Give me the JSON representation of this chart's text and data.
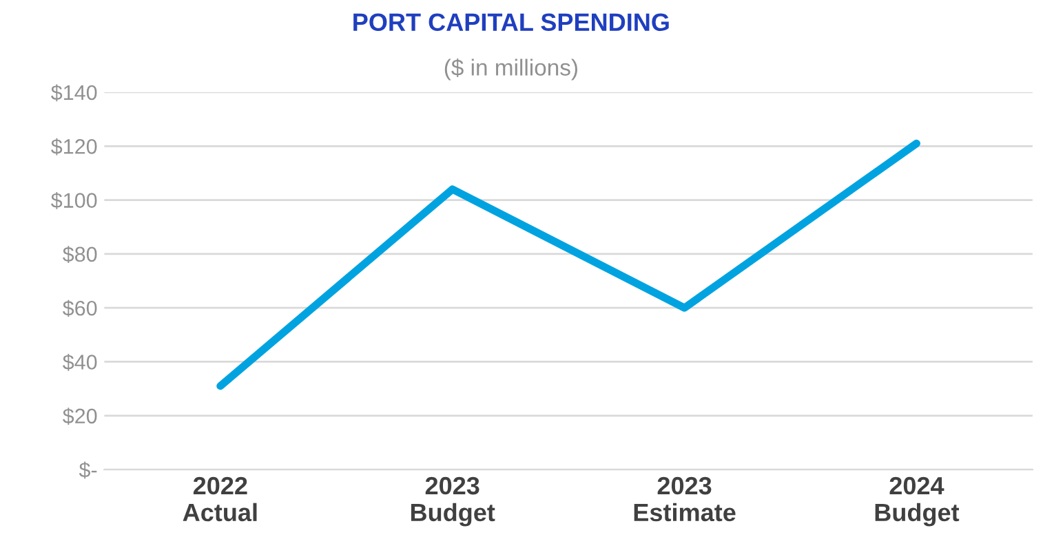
{
  "chart_data": {
    "type": "line",
    "title": "PORT CAPITAL SPENDING",
    "subtitle": "($ in millions)",
    "categories": [
      "2022\nActual",
      "2023\nBudget",
      "2023\nEstimate",
      "2024\nBudget"
    ],
    "series": [
      {
        "color": "#00a3e0",
        "values": [
          31,
          104,
          60,
          121
        ]
      }
    ],
    "ylim": [
      0,
      140
    ],
    "yticks": [
      {
        "value": 0,
        "label": "$-"
      },
      {
        "value": 20,
        "label": "$20"
      },
      {
        "value": 40,
        "label": "$40"
      },
      {
        "value": 60,
        "label": "$60"
      },
      {
        "value": 80,
        "label": "$80"
      },
      {
        "value": 100,
        "label": "$100"
      },
      {
        "value": 120,
        "label": "$120"
      },
      {
        "value": 140,
        "label": "$140"
      }
    ],
    "grid": "y",
    "marker": "none",
    "line_style": "solid"
  }
}
